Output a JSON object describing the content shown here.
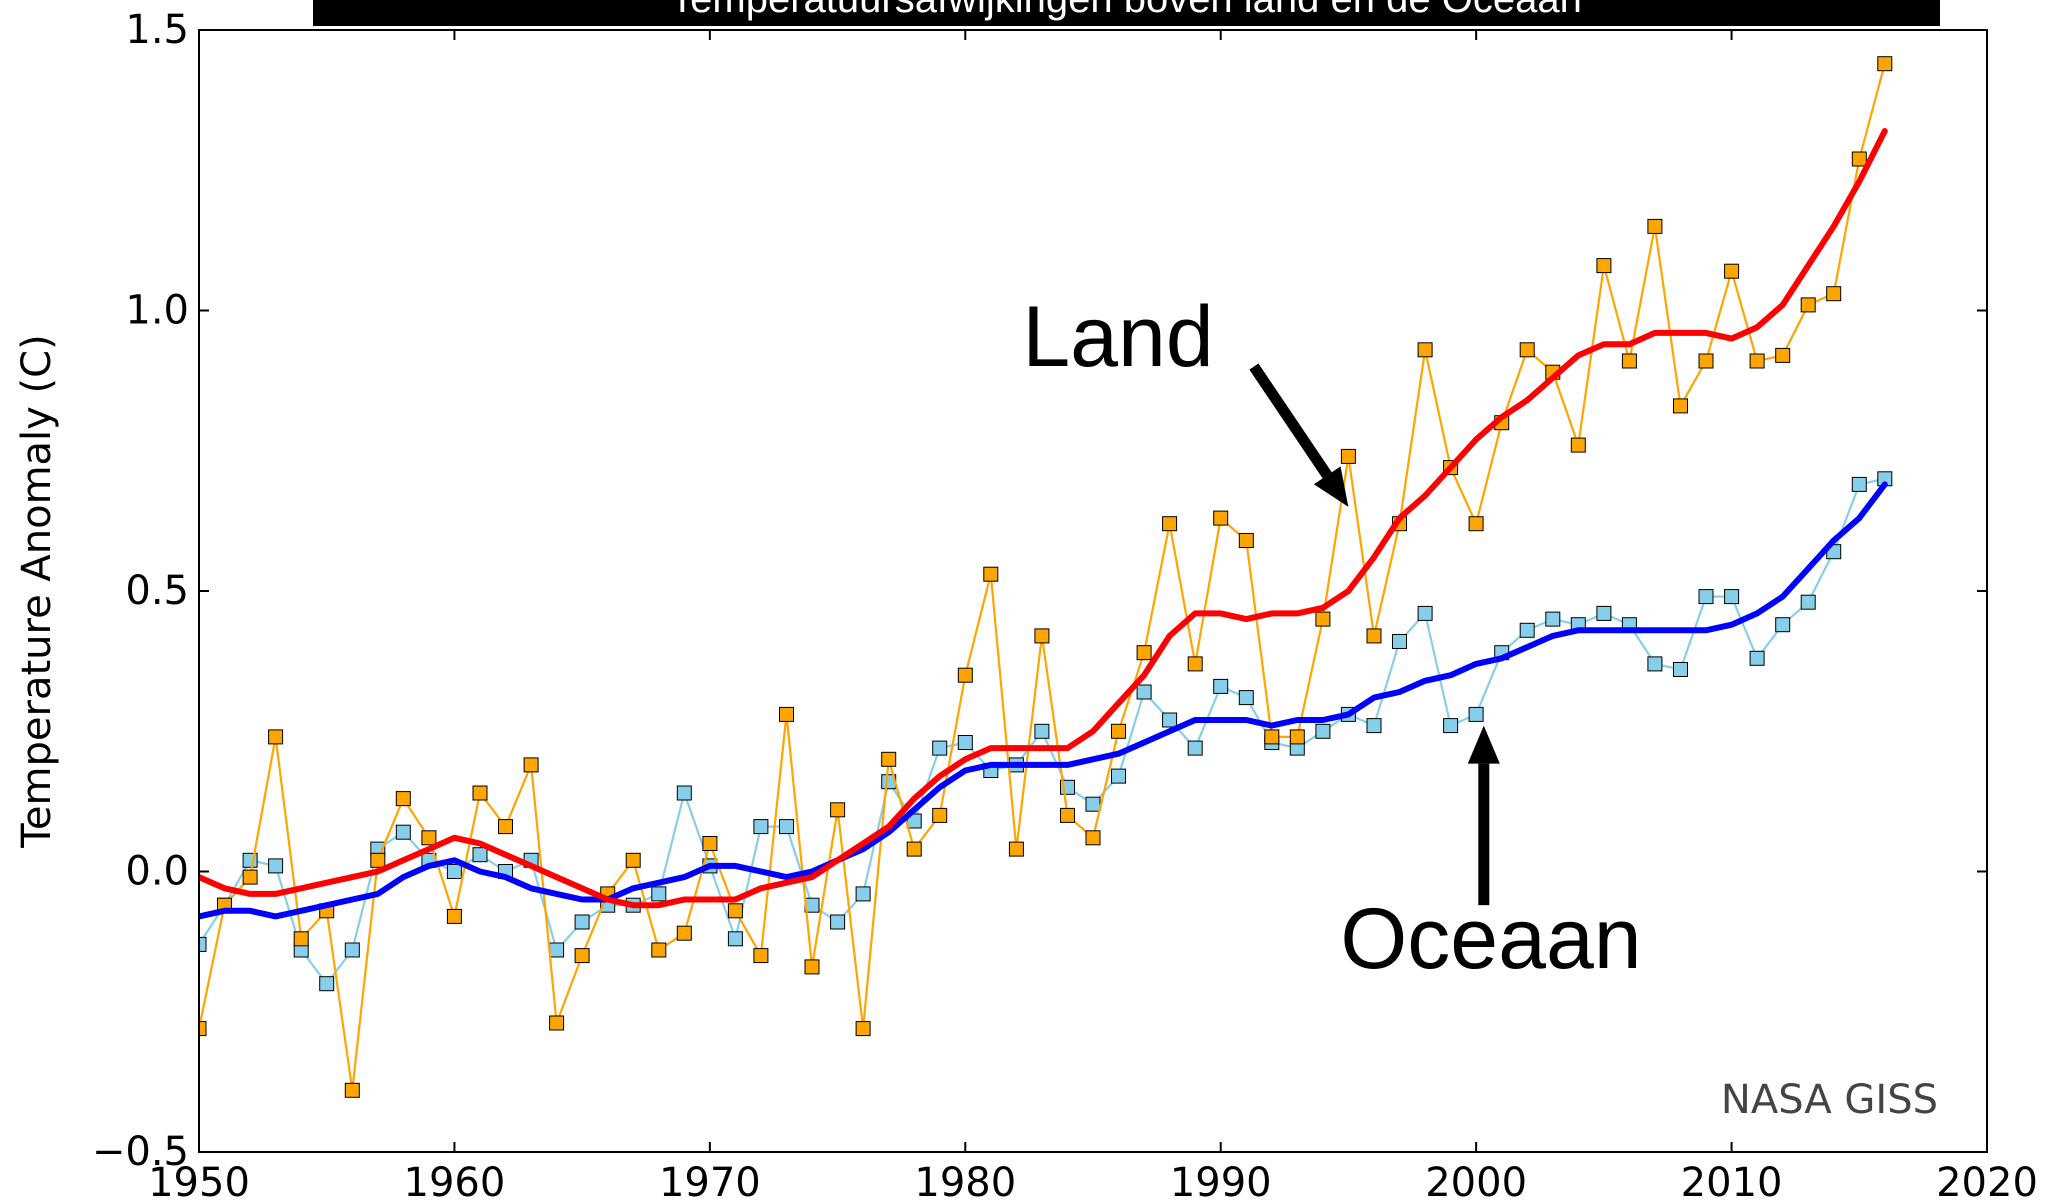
{
  "chart_data": {
    "type": "line",
    "title": "Temperatuursafwijkingen boven land en de Oceaan",
    "xlabel": "",
    "ylabel": "Temperature Anomaly (C)",
    "xlim": [
      1950,
      2020
    ],
    "ylim": [
      -0.5,
      1.5
    ],
    "xticks": [
      "1950",
      "1960",
      "1970",
      "1980",
      "1990",
      "2000",
      "2010",
      "2020"
    ],
    "yticks": [
      "−0.5",
      "0.0",
      "0.5",
      "1.0",
      "1.5"
    ],
    "ytick_values": [
      -0.5,
      0.0,
      0.5,
      1.0,
      1.5
    ],
    "xtick_values": [
      1950,
      1960,
      1970,
      1980,
      1990,
      2000,
      2010,
      2020
    ],
    "grid": false,
    "x": [
      1950,
      1951,
      1952,
      1953,
      1954,
      1955,
      1956,
      1957,
      1958,
      1959,
      1960,
      1961,
      1962,
      1963,
      1964,
      1965,
      1966,
      1967,
      1968,
      1969,
      1970,
      1971,
      1972,
      1973,
      1974,
      1975,
      1976,
      1977,
      1978,
      1979,
      1980,
      1981,
      1982,
      1983,
      1984,
      1985,
      1986,
      1987,
      1988,
      1989,
      1990,
      1991,
      1992,
      1993,
      1994,
      1995,
      1996,
      1997,
      1998,
      1999,
      2000,
      2001,
      2002,
      2003,
      2004,
      2005,
      2006,
      2007,
      2008,
      2009,
      2010,
      2011,
      2012,
      2013,
      2014,
      2015,
      2016
    ],
    "series": [
      {
        "key": "land_annual",
        "color": "#ffa500",
        "marker_color": "#ffa500",
        "values": [
          -0.28,
          -0.06,
          -0.01,
          0.24,
          -0.12,
          -0.07,
          -0.39,
          0.02,
          0.13,
          0.06,
          -0.08,
          0.14,
          0.08,
          0.19,
          -0.27,
          -0.15,
          -0.04,
          0.02,
          -0.14,
          -0.11,
          0.05,
          -0.07,
          -0.15,
          0.28,
          -0.17,
          0.11,
          -0.28,
          0.2,
          0.04,
          0.1,
          0.35,
          0.53,
          0.04,
          0.42,
          0.1,
          0.06,
          0.25,
          0.39,
          0.62,
          0.37,
          0.63,
          0.59,
          0.24,
          0.24,
          0.45,
          0.74,
          0.42,
          0.62,
          0.93,
          0.72,
          0.62,
          0.8,
          0.93,
          0.89,
          0.76,
          1.08,
          0.91,
          1.15,
          0.83,
          0.91,
          1.07,
          0.91,
          0.92,
          1.01,
          1.03,
          1.27,
          1.44
        ]
      },
      {
        "key": "ocean_annual",
        "color": "#87ceeb",
        "marker_color": "#87ceeb",
        "values": [
          -0.13,
          -0.06,
          0.02,
          0.01,
          -0.14,
          -0.2,
          -0.14,
          0.04,
          0.07,
          0.02,
          0.0,
          0.03,
          0.0,
          0.02,
          -0.14,
          -0.09,
          -0.06,
          -0.06,
          -0.04,
          0.14,
          0.01,
          -0.12,
          0.08,
          0.08,
          -0.06,
          -0.09,
          -0.04,
          0.16,
          0.09,
          0.22,
          0.23,
          0.18,
          0.19,
          0.25,
          0.15,
          0.12,
          0.17,
          0.32,
          0.27,
          0.22,
          0.33,
          0.31,
          0.23,
          0.22,
          0.25,
          0.28,
          0.26,
          0.41,
          0.46,
          0.26,
          0.28,
          0.39,
          0.43,
          0.45,
          0.44,
          0.46,
          0.44,
          0.37,
          0.36,
          0.49,
          0.49,
          0.38,
          0.44,
          0.48,
          0.57,
          0.69,
          0.7
        ]
      },
      {
        "key": "land_smooth",
        "color": "#ff0000",
        "values": [
          -0.01,
          -0.03,
          -0.04,
          -0.04,
          -0.03,
          -0.02,
          -0.01,
          0.0,
          0.02,
          0.04,
          0.06,
          0.05,
          0.03,
          0.01,
          -0.01,
          -0.03,
          -0.05,
          -0.06,
          -0.06,
          -0.05,
          -0.05,
          -0.05,
          -0.03,
          -0.02,
          -0.01,
          0.02,
          0.05,
          0.08,
          0.13,
          0.17,
          0.2,
          0.22,
          0.22,
          0.22,
          0.22,
          0.25,
          0.3,
          0.35,
          0.42,
          0.46,
          0.46,
          0.45,
          0.46,
          0.46,
          0.47,
          0.5,
          0.56,
          0.63,
          0.67,
          0.72,
          0.77,
          0.81,
          0.84,
          0.88,
          0.92,
          0.94,
          0.94,
          0.96,
          0.96,
          0.96,
          0.95,
          0.97,
          1.01,
          1.08,
          1.15,
          1.23,
          1.32
        ]
      },
      {
        "key": "ocean_smooth",
        "color": "#0000ff",
        "values": [
          -0.08,
          -0.07,
          -0.07,
          -0.08,
          -0.07,
          -0.06,
          -0.05,
          -0.04,
          -0.01,
          0.01,
          0.02,
          0.0,
          -0.01,
          -0.03,
          -0.04,
          -0.05,
          -0.05,
          -0.03,
          -0.02,
          -0.01,
          0.01,
          0.01,
          0.0,
          -0.01,
          0.0,
          0.02,
          0.04,
          0.07,
          0.11,
          0.15,
          0.18,
          0.19,
          0.19,
          0.19,
          0.19,
          0.2,
          0.21,
          0.23,
          0.25,
          0.27,
          0.27,
          0.27,
          0.26,
          0.27,
          0.27,
          0.28,
          0.31,
          0.32,
          0.34,
          0.35,
          0.37,
          0.38,
          0.4,
          0.42,
          0.43,
          0.43,
          0.43,
          0.43,
          0.43,
          0.43,
          0.44,
          0.46,
          0.49,
          0.54,
          0.59,
          0.63,
          0.69
        ]
      }
    ],
    "annotations": {
      "land": {
        "text": "Land",
        "arrow_from": [
          1991.3,
          0.9
        ],
        "arrow_to": [
          1995,
          0.65
        ]
      },
      "ocean": {
        "text": "Oceaan",
        "arrow_from": [
          2000.3,
          -0.06
        ],
        "arrow_to": [
          2000.3,
          0.26
        ]
      },
      "credit": "NASA GISS"
    }
  }
}
